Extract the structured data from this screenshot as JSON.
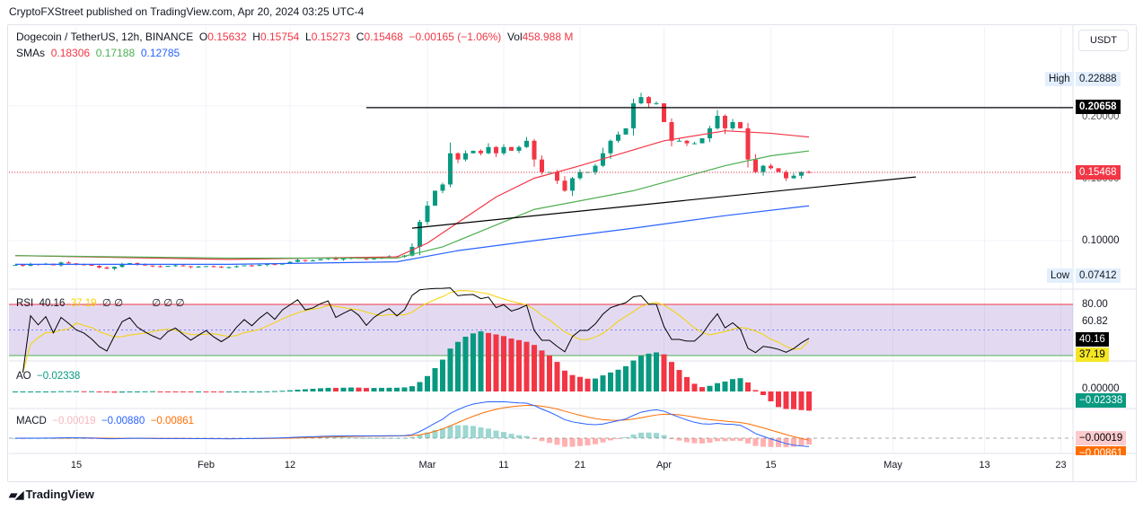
{
  "header": {
    "published": "CryptoFXStreet published on TradingView.com, Apr 20, 2024 03:25 UTC-4"
  },
  "legend": {
    "symbol": "Dogecoin / TetherUS, 12h, BINANCE",
    "o_label": "O",
    "open": "0.15632",
    "h_label": "H",
    "high": "0.15754",
    "l_label": "L",
    "low": "0.15273",
    "c_label": "C",
    "close": "0.15468",
    "change": "−0.00165 (−1.06%)",
    "vol_label": "Vol",
    "volume": "458.988 M",
    "sma_label": "SMAs",
    "sma1": "0.18306",
    "sma2": "0.17188",
    "sma3": "0.12785"
  },
  "currency_button": "USDT",
  "price_scale": {
    "high_label": "High",
    "high_value": "0.22888",
    "low_label": "Low",
    "low_value": "0.07412",
    "resistance": "0.20658",
    "last": "0.15468",
    "tick_020": "0.20000",
    "tick_015": "0.15000",
    "tick_010": "0.10000"
  },
  "rsi": {
    "label": "RSI",
    "value": "40.16",
    "ma": "37.19",
    "extra": "∅ ∅",
    "extra2": "∅ ∅ ∅",
    "tick_80": "80.00",
    "tick_6082": "60.82"
  },
  "ao": {
    "label": "AO",
    "value": "−0.02338",
    "tick_0": "0.00000"
  },
  "macd": {
    "label": "MACD",
    "hist": "−0.00019",
    "macd": "−0.00880",
    "signal": "−0.00861"
  },
  "colors": {
    "up": "#089981",
    "down": "#f23645",
    "sma1": "#f23645",
    "sma2": "#4caf50",
    "sma3": "#2962ff"
  },
  "footer": {
    "brand": "TradingView"
  },
  "chart_data": {
    "type": "candlestick",
    "title": "Dogecoin / TetherUS, 12h, BINANCE",
    "x_tick_labels": [
      "15",
      "Feb",
      "12",
      "Mar",
      "11",
      "21",
      "Apr",
      "15",
      "May",
      "13",
      "23"
    ],
    "x_tick_days": [
      0,
      17,
      28,
      46,
      56,
      66,
      77,
      91,
      107,
      119,
      129
    ],
    "day_zero": "Jan 15, 2024",
    "start_day": -8,
    "closes": [
      0.0805,
      0.0798,
      0.0812,
      0.0808,
      0.0815,
      0.0802,
      0.0825,
      0.0818,
      0.081,
      0.0806,
      0.0798,
      0.0785,
      0.0775,
      0.079,
      0.0812,
      0.082,
      0.0808,
      0.0801,
      0.0795,
      0.079,
      0.0798,
      0.0802,
      0.0795,
      0.0788,
      0.0792,
      0.0796,
      0.079,
      0.0785,
      0.0788,
      0.0795,
      0.0802,
      0.0798,
      0.0805,
      0.0812,
      0.0808,
      0.082,
      0.083,
      0.0845,
      0.0838,
      0.0842,
      0.0852,
      0.086,
      0.0848,
      0.0855,
      0.0862,
      0.0858,
      0.085,
      0.086,
      0.0868,
      0.0875,
      0.087,
      0.088,
      0.095,
      0.115,
      0.128,
      0.14,
      0.145,
      0.17,
      0.165,
      0.17,
      0.172,
      0.17,
      0.175,
      0.17,
      0.175,
      0.172,
      0.175,
      0.18,
      0.165,
      0.155,
      0.155,
      0.148,
      0.14,
      0.15,
      0.155,
      0.155,
      0.16,
      0.17,
      0.18,
      0.185,
      0.19,
      0.21,
      0.215,
      0.21,
      0.21,
      0.195,
      0.18,
      0.18,
      0.178,
      0.178,
      0.182,
      0.19,
      0.2,
      0.19,
      0.195,
      0.19,
      0.165,
      0.155,
      0.16,
      0.158,
      0.155,
      0.15,
      0.152,
      0.155,
      0.15468
    ],
    "sma_series": [
      {
        "name": "SMA 0.18306",
        "color": "#f23645",
        "points": [
          [
            -8,
            0.088
          ],
          [
            20,
            0.085
          ],
          [
            42,
            0.087
          ],
          [
            46,
            0.098
          ],
          [
            55,
            0.135
          ],
          [
            60,
            0.15
          ],
          [
            66,
            0.16
          ],
          [
            77,
            0.18
          ],
          [
            85,
            0.188
          ],
          [
            91,
            0.186
          ],
          [
            96,
            0.183
          ]
        ]
      },
      {
        "name": "SMA 0.17188",
        "color": "#4caf50",
        "points": [
          [
            -8,
            0.088
          ],
          [
            20,
            0.086
          ],
          [
            42,
            0.086
          ],
          [
            48,
            0.095
          ],
          [
            60,
            0.125
          ],
          [
            73,
            0.14
          ],
          [
            85,
            0.16
          ],
          [
            91,
            0.168
          ],
          [
            96,
            0.1719
          ]
        ]
      },
      {
        "name": "SMA 0.12785",
        "color": "#2962ff",
        "points": [
          [
            -8,
            0.081
          ],
          [
            20,
            0.081
          ],
          [
            42,
            0.083
          ],
          [
            50,
            0.092
          ],
          [
            60,
            0.1
          ],
          [
            73,
            0.11
          ],
          [
            85,
            0.12
          ],
          [
            96,
            0.1279
          ]
        ]
      }
    ],
    "trendlines": [
      {
        "type": "horizontal",
        "price": 0.20658,
        "from_day": 38
      },
      {
        "type": "ascending",
        "from": [
          44,
          0.11
        ],
        "to": [
          110,
          0.151
        ]
      }
    ],
    "ylim": [
      0.0741,
      0.2289
    ],
    "indicators": {
      "rsi_last": 40.16,
      "rsi_ma_last": 37.19,
      "ao_last": -0.02338,
      "macd_last": -0.0088,
      "signal_last": -0.00861,
      "hist_last": -0.00019
    }
  }
}
